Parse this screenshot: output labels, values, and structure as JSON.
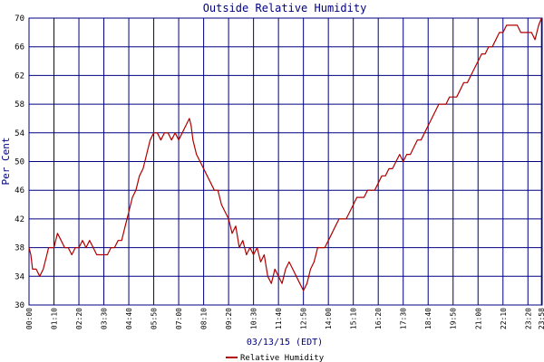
{
  "chart_data": {
    "type": "line",
    "title": "Outside Relative Humidity",
    "xlabel": "03/13/15 (EDT)",
    "ylabel": "Per Cent",
    "ylim": [
      30,
      70
    ],
    "yticks": [
      30,
      34,
      38,
      42,
      46,
      50,
      54,
      58,
      62,
      66,
      70
    ],
    "xlim": [
      0,
      1440
    ],
    "x_unit": "minutes since 00:00",
    "xtick_labels": [
      "00:00",
      "01:10",
      "02:20",
      "03:30",
      "04:40",
      "05:50",
      "07:00",
      "08:10",
      "09:20",
      "10:30",
      "11:40",
      "12:50",
      "14:00",
      "15:10",
      "16:20",
      "17:30",
      "18:40",
      "19:50",
      "21:00",
      "22:10",
      "23:20",
      "23:58"
    ],
    "xtick_minutes": [
      0,
      70,
      140,
      210,
      280,
      350,
      420,
      490,
      560,
      630,
      700,
      770,
      840,
      910,
      980,
      1050,
      1120,
      1190,
      1260,
      1330,
      1400,
      1438
    ],
    "grid": true,
    "legend_position": "bottom",
    "series": [
      {
        "name": "Relative Humidity",
        "color": "#b00000",
        "points": [
          [
            0,
            38
          ],
          [
            5,
            37
          ],
          [
            10,
            35
          ],
          [
            20,
            35
          ],
          [
            30,
            34
          ],
          [
            40,
            35
          ],
          [
            50,
            37
          ],
          [
            55,
            38
          ],
          [
            70,
            38
          ],
          [
            80,
            40
          ],
          [
            90,
            39
          ],
          [
            100,
            38
          ],
          [
            110,
            38
          ],
          [
            120,
            37
          ],
          [
            130,
            38
          ],
          [
            140,
            38
          ],
          [
            150,
            39
          ],
          [
            160,
            38
          ],
          [
            170,
            39
          ],
          [
            180,
            38
          ],
          [
            190,
            37
          ],
          [
            200,
            37
          ],
          [
            210,
            37
          ],
          [
            220,
            37
          ],
          [
            230,
            38
          ],
          [
            240,
            38
          ],
          [
            250,
            39
          ],
          [
            260,
            39
          ],
          [
            270,
            41
          ],
          [
            280,
            43
          ],
          [
            290,
            45
          ],
          [
            300,
            46
          ],
          [
            310,
            48
          ],
          [
            320,
            49
          ],
          [
            330,
            51
          ],
          [
            340,
            53
          ],
          [
            350,
            54
          ],
          [
            360,
            54
          ],
          [
            370,
            53
          ],
          [
            380,
            54
          ],
          [
            390,
            54
          ],
          [
            400,
            53
          ],
          [
            410,
            54
          ],
          [
            420,
            53
          ],
          [
            430,
            54
          ],
          [
            440,
            55
          ],
          [
            450,
            56
          ],
          [
            455,
            55
          ],
          [
            460,
            53
          ],
          [
            470,
            51
          ],
          [
            480,
            50
          ],
          [
            490,
            49
          ],
          [
            500,
            48
          ],
          [
            510,
            47
          ],
          [
            520,
            46
          ],
          [
            530,
            46
          ],
          [
            540,
            44
          ],
          [
            550,
            43
          ],
          [
            560,
            42
          ],
          [
            570,
            40
          ],
          [
            580,
            41
          ],
          [
            590,
            38
          ],
          [
            600,
            39
          ],
          [
            610,
            37
          ],
          [
            620,
            38
          ],
          [
            630,
            37
          ],
          [
            640,
            38
          ],
          [
            650,
            36
          ],
          [
            660,
            37
          ],
          [
            670,
            34
          ],
          [
            680,
            33
          ],
          [
            690,
            35
          ],
          [
            700,
            34
          ],
          [
            710,
            33
          ],
          [
            720,
            35
          ],
          [
            730,
            36
          ],
          [
            740,
            35
          ],
          [
            750,
            34
          ],
          [
            760,
            33
          ],
          [
            770,
            32
          ],
          [
            780,
            33
          ],
          [
            790,
            35
          ],
          [
            800,
            36
          ],
          [
            810,
            38
          ],
          [
            820,
            38
          ],
          [
            830,
            38
          ],
          [
            840,
            39
          ],
          [
            850,
            40
          ],
          [
            860,
            41
          ],
          [
            870,
            42
          ],
          [
            880,
            42
          ],
          [
            890,
            42
          ],
          [
            900,
            43
          ],
          [
            910,
            44
          ],
          [
            920,
            45
          ],
          [
            930,
            45
          ],
          [
            940,
            45
          ],
          [
            950,
            46
          ],
          [
            960,
            46
          ],
          [
            970,
            46
          ],
          [
            980,
            47
          ],
          [
            990,
            48
          ],
          [
            1000,
            48
          ],
          [
            1010,
            49
          ],
          [
            1020,
            49
          ],
          [
            1030,
            50
          ],
          [
            1040,
            51
          ],
          [
            1050,
            50
          ],
          [
            1060,
            51
          ],
          [
            1070,
            51
          ],
          [
            1080,
            52
          ],
          [
            1090,
            53
          ],
          [
            1100,
            53
          ],
          [
            1110,
            54
          ],
          [
            1120,
            55
          ],
          [
            1130,
            56
          ],
          [
            1140,
            57
          ],
          [
            1150,
            58
          ],
          [
            1160,
            58
          ],
          [
            1170,
            58
          ],
          [
            1180,
            59
          ],
          [
            1190,
            59
          ],
          [
            1200,
            59
          ],
          [
            1210,
            60
          ],
          [
            1220,
            61
          ],
          [
            1230,
            61
          ],
          [
            1240,
            62
          ],
          [
            1250,
            63
          ],
          [
            1260,
            64
          ],
          [
            1270,
            65
          ],
          [
            1280,
            65
          ],
          [
            1290,
            66
          ],
          [
            1300,
            66
          ],
          [
            1310,
            67
          ],
          [
            1320,
            68
          ],
          [
            1330,
            68
          ],
          [
            1340,
            69
          ],
          [
            1350,
            69
          ],
          [
            1360,
            69
          ],
          [
            1370,
            69
          ],
          [
            1380,
            68
          ],
          [
            1390,
            68
          ],
          [
            1400,
            68
          ],
          [
            1410,
            68
          ],
          [
            1420,
            67
          ],
          [
            1430,
            69
          ],
          [
            1438,
            70
          ]
        ]
      }
    ]
  }
}
